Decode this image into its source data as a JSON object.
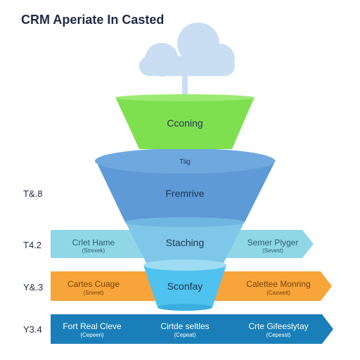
{
  "title": "CRM Aperiate In Casted",
  "icon": "cloud-icon",
  "colors": {
    "top_funnel": "#7fe04f",
    "mid_funnel": "#5d9ad6",
    "low_funnel": "#7fc7e8",
    "bottom_funnel": "#4fc2ef",
    "teal_band": "#8fd7e6",
    "orange_band": "#f7a53a",
    "blue_band": "#1a7fb8",
    "cloud": "#c9def2"
  },
  "funnel": {
    "top_label": "Cconing",
    "rim_label": "Tiig",
    "mid_label": "Fremrive",
    "low_label": "Staching",
    "bottom_label": "Sconfay"
  },
  "rows": [
    {
      "side_label": "T&.8"
    },
    {
      "side_label": "T4.2",
      "left_title": "Crlet Hame",
      "left_sub": "(Strexek)",
      "right_title": "Semer Plyger",
      "right_sub": "(Sevest)"
    },
    {
      "side_label": "Y&.3",
      "left_title": "Cartes Cuage",
      "left_sub": "(Sneret)",
      "right_title": "Calettee Monring",
      "right_sub": "(Caxwelt)"
    },
    {
      "side_label": "Y3.4",
      "left_title": "Fort Real Cleve",
      "left_sub": "(Cepeen)",
      "center_title": "Cirtde seltles",
      "center_sub": "(Cepeat)",
      "right_title": "Crte Gifeeslytay",
      "right_sub": "(Cepesst)"
    }
  ]
}
